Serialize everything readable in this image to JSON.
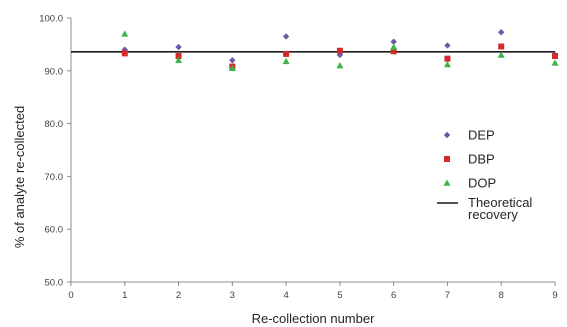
{
  "chart_data": {
    "type": "scatter",
    "title": "",
    "xlabel": "Re-collection number",
    "ylabel": "% of analyte re-collected",
    "xlim": [
      0,
      9
    ],
    "ylim": [
      50,
      100
    ],
    "x_ticks": [
      0,
      1,
      2,
      3,
      4,
      5,
      6,
      7,
      8,
      9
    ],
    "y_ticks": [
      50,
      60,
      70,
      80,
      90,
      100
    ],
    "x_tick_labels": [
      "0",
      "1",
      "2",
      "3",
      "4",
      "5",
      "6",
      "7",
      "8",
      "9"
    ],
    "y_tick_labels": [
      "50.0",
      "60.0",
      "70.0",
      "80.0",
      "90.0",
      "100.0"
    ],
    "grid": false,
    "legend_position": "right",
    "series": [
      {
        "name": "DEP",
        "marker": "diamond",
        "color": "#6a5aa8",
        "x": [
          1,
          2,
          3,
          4,
          5,
          6,
          7,
          8,
          9
        ],
        "values": [
          94.0,
          94.5,
          92.0,
          96.5,
          93.0,
          95.5,
          94.8,
          97.3,
          93.0
        ]
      },
      {
        "name": "DBP",
        "marker": "square",
        "color": "#d42a2a",
        "x": [
          1,
          2,
          3,
          4,
          5,
          6,
          7,
          8,
          9
        ],
        "values": [
          93.3,
          92.8,
          90.8,
          93.2,
          93.8,
          93.7,
          92.3,
          94.6,
          92.8
        ]
      },
      {
        "name": "DOP",
        "marker": "triangle",
        "color": "#3cb54a",
        "x": [
          1,
          2,
          3,
          4,
          5,
          6,
          7,
          8,
          9
        ],
        "values": [
          97.0,
          92.0,
          90.5,
          91.8,
          91.0,
          94.5,
          91.2,
          93.0,
          91.5
        ]
      }
    ],
    "reference_line": {
      "name": "Theoretical\nrecovery",
      "value": 93.6,
      "color": "#1a1a1a"
    }
  }
}
